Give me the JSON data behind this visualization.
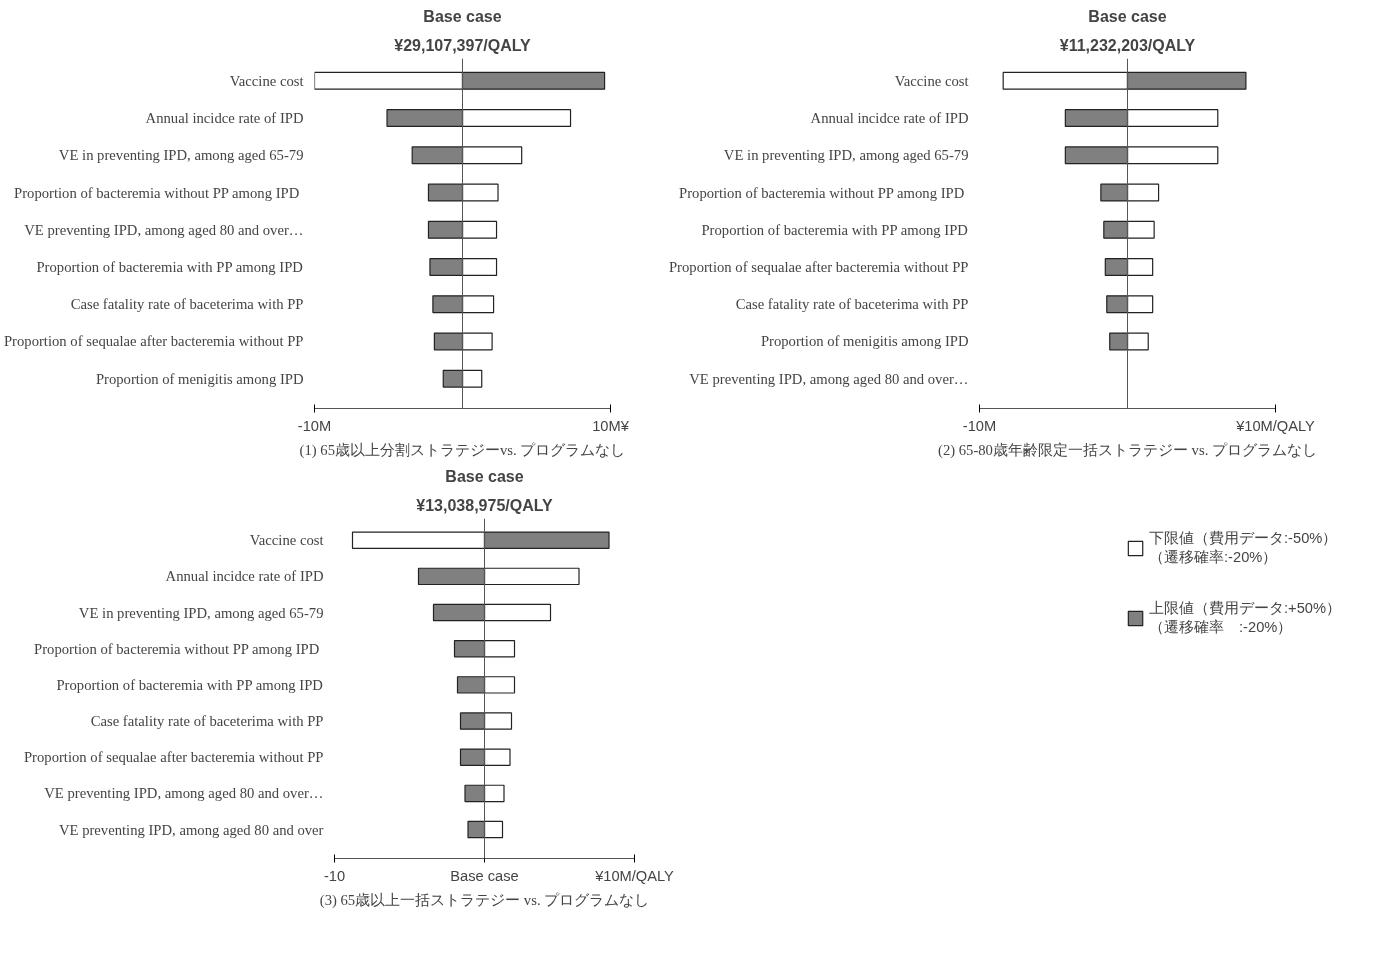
{
  "chart_data": [
    {
      "type": "bar",
      "orientation": "horizontal",
      "stacked": true,
      "title": "Base case",
      "subtitle": "¥29,107,397/QALY",
      "xlabel": "(1) 65歳以上分割ストラテジーvs. プログラムなし",
      "categories": [
        "Vaccine cost",
        "Annual incidce rate of IPD",
        "VE in preventing IPD, among aged 65-79",
        "Proportion of bacteremia without PP  among IPD",
        "VE preventing IPD, among aged 80 and over…",
        "Proportion of bacteremia with PP among IPD",
        "Case fatality rate of baceterima with PP",
        "Proportion of sequalae after bacteremia without PP",
        "Proportion of menigitis among IPD"
      ],
      "series": [
        {
          "color": "#ffffff",
          "values": [
            -10,
            7.3,
            4.0,
            2.4,
            2.3,
            2.3,
            2.1,
            2.0,
            1.3
          ]
        },
        {
          "color": "#808080",
          "values": [
            9.6,
            -5.1,
            -3.4,
            -2.3,
            -2.3,
            -2.2,
            -2.0,
            -1.9,
            -1.3
          ]
        }
      ],
      "ref_lines": [
        {
          "axis": "x",
          "value": 0,
          "color": "#555555"
        }
      ],
      "xlim": [
        -10,
        10
      ],
      "xticks": [
        {
          "value": -10,
          "label": "-10M"
        },
        {
          "value": 10,
          "label": "10M¥"
        }
      ],
      "grid": false,
      "legend": false
    },
    {
      "type": "bar",
      "orientation": "horizontal",
      "stacked": true,
      "title": "Base case",
      "subtitle": "¥11,232,203/QALY",
      "xlabel": "(2) 65-80歳年齢限定一括ストラテジー vs. プログラムなし",
      "categories": [
        "Vaccine cost",
        "Annual incidce rate of IPD",
        "VE in preventing IPD, among aged 65-79",
        "Proportion of bacteremia without PP  among IPD",
        "Proportion of bacteremia with PP among IPD",
        "Proportion of sequalae after bacteremia without PP",
        "Case fatality rate of baceterima with PP",
        "Proportion of menigitis among IPD",
        "VE preventing IPD, among aged 80 and over…"
      ],
      "series": [
        {
          "color": "#ffffff",
          "values": [
            -8.4,
            6.1,
            6.1,
            2.1,
            1.8,
            1.7,
            1.7,
            1.4,
            null
          ]
        },
        {
          "color": "#808080",
          "values": [
            8.0,
            -4.2,
            -4.2,
            -1.8,
            -1.6,
            -1.5,
            -1.4,
            -1.2,
            null
          ]
        }
      ],
      "ref_lines": [
        {
          "axis": "x",
          "value": 0,
          "color": "#555555"
        }
      ],
      "xlim": [
        -10,
        10
      ],
      "xticks": [
        {
          "value": -10,
          "label": "-10M"
        },
        {
          "value": 10,
          "label": "¥10M/QALY"
        }
      ],
      "grid": false,
      "legend": false
    },
    {
      "type": "bar",
      "orientation": "horizontal",
      "stacked": true,
      "title": "Base case",
      "subtitle": "¥13,038,975/QALY",
      "xlabel": "(3) 65歳以上一括ストラテジー vs. プログラムなし",
      "categories": [
        "Vaccine cost",
        "Annual incidce rate of IPD",
        "VE in preventing IPD, among aged 65-79",
        "Proportion of bacteremia without PP  among IPD",
        "Proportion of bacteremia with PP among IPD",
        "Case fatality rate of baceterima with PP",
        "Proportion of sequalae after bacteremia without PP",
        "VE preventing IPD, among aged 80 and over…",
        "VE preventing IPD, among aged 80 and over"
      ],
      "series": [
        {
          "name": "下限値（費用データ:-50%）（遷移確率:-20%）",
          "color": "#ffffff",
          "values": [
            -8.8,
            6.3,
            4.4,
            2.0,
            2.0,
            1.8,
            1.7,
            1.3,
            1.2
          ]
        },
        {
          "name": "上限値（費用データ:+50%）（遷移確率　:-20%）",
          "color": "#808080",
          "values": [
            8.3,
            -4.4,
            -3.4,
            -2.0,
            -1.8,
            -1.6,
            -1.6,
            -1.3,
            -1.1
          ]
        }
      ],
      "ref_lines": [
        {
          "axis": "x",
          "value": 0,
          "color": "#555555"
        }
      ],
      "xlim": [
        -10,
        10
      ],
      "xticks": [
        {
          "value": -10,
          "label": "-10"
        },
        {
          "value": 0,
          "label": "Base case"
        },
        {
          "value": 10,
          "label": "¥10M/QALY"
        }
      ],
      "grid": false,
      "legend": "right"
    }
  ]
}
